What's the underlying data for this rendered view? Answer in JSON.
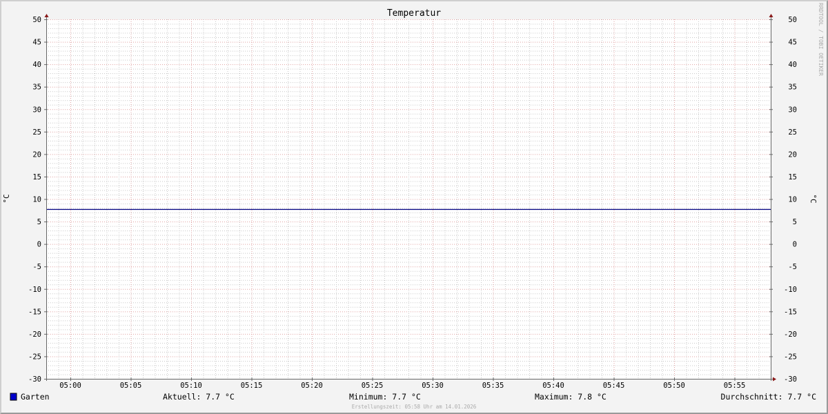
{
  "chart_data": {
    "type": "line",
    "title": "Temperatur",
    "ylabel": "°C",
    "ylim": [
      -30,
      50
    ],
    "yticks": [
      50,
      45,
      40,
      35,
      30,
      25,
      20,
      15,
      10,
      5,
      0,
      -5,
      -10,
      -15,
      -20,
      -25,
      -30
    ],
    "xlim": [
      "04:58",
      "05:58"
    ],
    "xticks": [
      "05:00",
      "05:05",
      "05:10",
      "05:15",
      "05:20",
      "05:25",
      "05:30",
      "05:35",
      "05:40",
      "05:45",
      "05:50",
      "05:55"
    ],
    "grid": true,
    "series": [
      {
        "name": "Garten",
        "color": "#0000cc",
        "line_color": "#000080",
        "points": [
          {
            "t": "04:58",
            "v": 7.7
          },
          {
            "t": "05:58",
            "v": 7.7
          }
        ]
      }
    ],
    "legend": {
      "name": "Garten",
      "current": "Aktuell: 7.7 °C",
      "minimum": "Minimum: 7.7 °C",
      "maximum": "Maximum: 7.8 °C",
      "average": "Durchschnitt: 7.7 °C"
    },
    "footer": "Erstellungszeit: 05:58 Uhr am 14.01.2026",
    "watermark": "RRDTOOL / TOBI OETIKER",
    "colors": {
      "major_grid": "#e0a0a0",
      "minor_grid": "#c8c8c8",
      "axis": "#666666",
      "arrow": "#8b1a1a"
    }
  }
}
